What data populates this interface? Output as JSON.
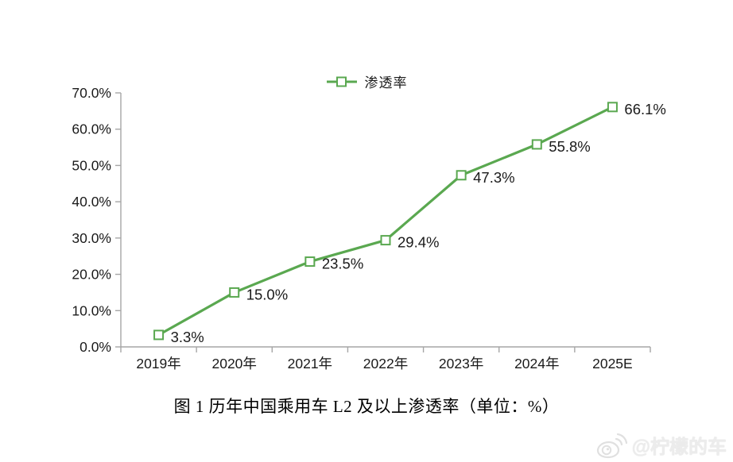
{
  "legend": {
    "label": "渗透率"
  },
  "caption": "图 1 历年中国乘用车 L2 及以上渗透率（单位：%）",
  "watermark": {
    "source": "weibo",
    "handle": "@柠檬的车"
  },
  "colors": {
    "line": "#5aa850",
    "marker_fill": "#ffffff",
    "axis": "#a6a6a6",
    "text": "#1a1a1a"
  },
  "chart_data": {
    "type": "line",
    "title": "图 1 历年中国乘用车 L2 及以上渗透率（单位：%）",
    "legend_entries": [
      "渗透率"
    ],
    "legend_position": "top",
    "categories": [
      "2019年",
      "2020年",
      "2021年",
      "2022年",
      "2023年",
      "2024年",
      "2025E"
    ],
    "series": [
      {
        "name": "渗透率",
        "values": [
          3.3,
          15.0,
          23.5,
          29.4,
          47.3,
          55.8,
          66.1
        ],
        "point_labels": [
          "3.3%",
          "15.0%",
          "23.5%",
          "29.4%",
          "47.3%",
          "55.8%",
          "66.1%"
        ]
      }
    ],
    "xlabel": "",
    "ylabel": "",
    "ylim": [
      0,
      70
    ],
    "ytick_step": 10,
    "ytick_labels": [
      "0.0%",
      "10.0%",
      "20.0%",
      "30.0%",
      "40.0%",
      "50.0%",
      "60.0%",
      "70.0%"
    ],
    "grid": false,
    "marker": "open-square"
  }
}
